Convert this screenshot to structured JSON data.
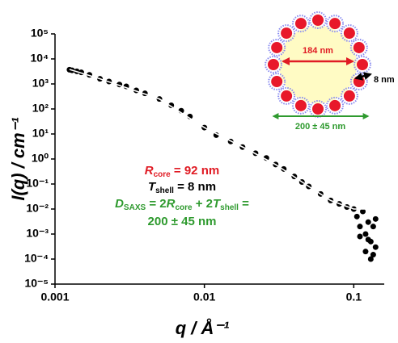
{
  "chart_data": {
    "type": "scatter",
    "x_label": "q / Å⁻¹",
    "y_label": "I(q) / cm⁻¹",
    "xscale": "log",
    "yscale": "log",
    "xlim": [
      0.001,
      0.16
    ],
    "ylim": [
      1e-05,
      100000
    ],
    "xticks": [
      0.001,
      0.01,
      0.1
    ],
    "yticks": [
      {
        "value": 1e-05,
        "label": "10⁻⁵"
      },
      {
        "value": 0.0001,
        "label": "10⁻⁴"
      },
      {
        "value": 0.001,
        "label": "10⁻³"
      },
      {
        "value": 0.01,
        "label": "10⁻²"
      },
      {
        "value": 0.1,
        "label": "10⁻¹"
      },
      {
        "value": 1,
        "label": "10⁰"
      },
      {
        "value": 10,
        "label": "10¹"
      },
      {
        "value": 100,
        "label": "10²"
      },
      {
        "value": 1000,
        "label": "10³"
      },
      {
        "value": 10000,
        "label": "10⁴"
      },
      {
        "value": 100000,
        "label": "10⁵"
      }
    ],
    "series": [
      {
        "kind": "points",
        "color": "#000000",
        "x": [
          0.00125,
          0.0013,
          0.0014,
          0.0015,
          0.0017,
          0.002,
          0.0023,
          0.0027,
          0.003,
          0.0035,
          0.004,
          0.005,
          0.006,
          0.007,
          0.008,
          0.01,
          0.012,
          0.015,
          0.018,
          0.022,
          0.026,
          0.03,
          0.034,
          0.04,
          0.045,
          0.05,
          0.06,
          0.07,
          0.08,
          0.09,
          0.1,
          0.105,
          0.11,
          0.115,
          0.12,
          0.125,
          0.13,
          0.135,
          0.14,
          0.11,
          0.12,
          0.13,
          0.14,
          0.125,
          0.135
        ],
        "values": [
          3700,
          3500,
          3200,
          2900,
          2300,
          1600,
          1250,
          950,
          800,
          550,
          420,
          250,
          140,
          85,
          50,
          18,
          9,
          5,
          3,
          1.7,
          1.1,
          0.6,
          0.4,
          0.2,
          0.12,
          0.08,
          0.04,
          0.022,
          0.016,
          0.012,
          0.01,
          0.005,
          0.002,
          0.008,
          0.001,
          0.003,
          0.0005,
          0.002,
          0.0003,
          0.0008,
          0.0002,
          0.0001,
          0.004,
          0.0006,
          0.00015
        ]
      },
      {
        "kind": "line",
        "color": "#ffffff",
        "x": [
          0.00125,
          0.002,
          0.005,
          0.01,
          0.02,
          0.03,
          0.05,
          0.07,
          0.1,
          0.14
        ],
        "values": [
          3800,
          1600,
          250,
          18,
          2.2,
          0.6,
          0.08,
          0.022,
          0.01,
          0.01
        ]
      }
    ],
    "annotations": [
      {
        "color": "#e01b24",
        "segments": [
          {
            "text": "R",
            "style": "italic"
          },
          {
            "text": "core",
            "style": "sub"
          },
          {
            "text": " = 92 nm"
          }
        ]
      },
      {
        "color": "#000000",
        "segments": [
          {
            "text": "T",
            "style": "italic"
          },
          {
            "text": "shell",
            "style": "sub"
          },
          {
            "text": " = 8 nm"
          }
        ]
      },
      {
        "color": "#2e9a2e",
        "segments": [
          {
            "text": "D",
            "style": "italic"
          },
          {
            "text": "SAXS",
            "style": "sub"
          },
          {
            "text": " =  2"
          },
          {
            "text": "R",
            "style": "italic"
          },
          {
            "text": "core",
            "style": "sub"
          },
          {
            "text": " + 2"
          },
          {
            "text": "T",
            "style": "italic"
          },
          {
            "text": "shell",
            "style": "sub"
          },
          {
            "text": " ="
          }
        ]
      },
      {
        "color": "#2e9a2e",
        "segments": [
          {
            "text": "200 ± 45 nm"
          }
        ]
      }
    ],
    "inset": {
      "core_label": "184 nm",
      "shell_label": "8 nm",
      "diameter_label": "200 ± 45 nm"
    }
  }
}
